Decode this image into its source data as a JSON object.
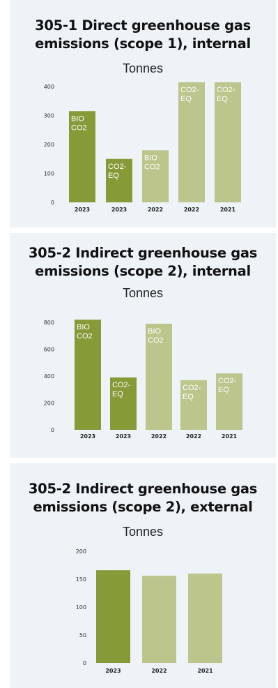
{
  "chart_data": [
    {
      "type": "bar",
      "title": "305-1 Direct greenhouse gas emissions (scope 1), internal",
      "title_lines": [
        "305-1 Direct greenhouse gas",
        "emissions (scope 1), internal"
      ],
      "unit": "Tonnes",
      "ylim": [
        0,
        400
      ],
      "yticks": [
        "0",
        "100",
        "200",
        "300",
        "400"
      ],
      "categories": [
        "2023",
        "2023",
        "2022",
        "2022",
        "2021"
      ],
      "values": [
        315,
        150,
        180,
        415,
        415
      ],
      "bar_labels": [
        [
          "BIO",
          "CO2"
        ],
        [
          "CO2-",
          "EQ"
        ],
        [
          "BIO",
          "CO2"
        ],
        [
          "CO2-",
          "EQ"
        ],
        [
          "CO2-",
          "EQ"
        ]
      ],
      "colors": [
        "#869a38",
        "#869a38",
        "#bcc58c",
        "#bcc58c",
        "#bcc58c"
      ],
      "grid": false,
      "legend": "none"
    },
    {
      "type": "bar",
      "title": "305-2 Indirect greenhouse gas emissions (scope 2), internal",
      "title_lines": [
        "305-2 Indirect greenhouse gas",
        "emissions (scope 2), internal"
      ],
      "unit": "Tonnes",
      "ylim": [
        0,
        800
      ],
      "yticks": [
        "0",
        "200",
        "400",
        "600",
        "800"
      ],
      "categories": [
        "2023",
        "2023",
        "2022",
        "2022",
        "2021"
      ],
      "values": [
        820,
        390,
        790,
        370,
        420
      ],
      "bar_labels": [
        [
          "BIO",
          "CO2"
        ],
        [
          "CO2-",
          "EQ"
        ],
        [
          "BIO",
          "CO2"
        ],
        [
          "CO2-",
          "EQ"
        ],
        [
          "CO2-",
          "EQ"
        ]
      ],
      "colors": [
        "#869a38",
        "#869a38",
        "#bcc58c",
        "#bcc58c",
        "#bcc58c"
      ],
      "grid": false,
      "legend": "none"
    },
    {
      "type": "bar",
      "title": "305-2 Indirect greenhouse gas emissions (scope 2), external",
      "title_lines": [
        "305-2 Indirect greenhouse gas",
        "emissions (scope 2), external"
      ],
      "unit": "Tonnes",
      "ylim": [
        0,
        200
      ],
      "yticks": [
        "0",
        "50",
        "100",
        "150",
        "200"
      ],
      "categories": [
        "2023",
        "2022",
        "2021"
      ],
      "values": [
        166,
        156,
        160
      ],
      "bar_labels": [
        [],
        [],
        []
      ],
      "colors": [
        "#869a38",
        "#bcc58c",
        "#bcc58c"
      ],
      "grid": false,
      "legend": "none"
    }
  ]
}
